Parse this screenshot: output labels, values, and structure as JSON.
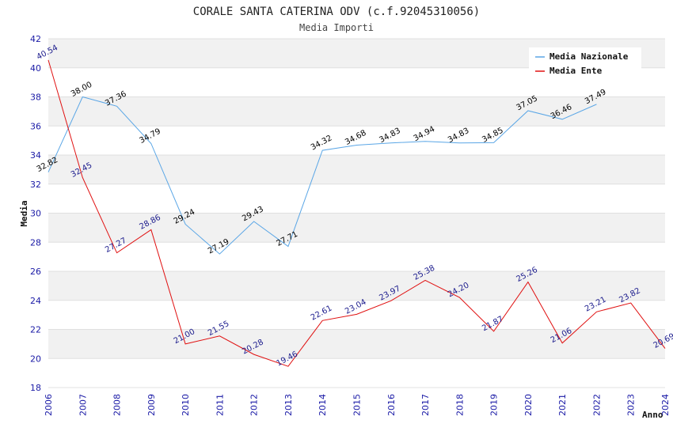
{
  "chart_data": {
    "type": "line",
    "title": "CORALE SANTA CATERINA ODV (c.f.92045310056)",
    "subtitle": "Media Importi",
    "xlabel": "Anno",
    "ylabel": "Media",
    "ylim": [
      18,
      42
    ],
    "yticks": [
      18,
      20,
      22,
      24,
      26,
      28,
      30,
      32,
      34,
      36,
      38,
      40,
      42
    ],
    "x": [
      2006,
      2007,
      2008,
      2009,
      2010,
      2011,
      2012,
      2013,
      2014,
      2015,
      2016,
      2017,
      2018,
      2019,
      2020,
      2021,
      2022,
      2023,
      2024
    ],
    "grid": true,
    "legend_position": "top-right",
    "series": [
      {
        "name": "Media Nazionale",
        "color": "#5aa6e6",
        "label_color": "#000000",
        "values": [
          32.82,
          38.0,
          37.36,
          34.79,
          29.24,
          27.19,
          29.43,
          27.71,
          34.32,
          34.68,
          34.83,
          34.94,
          34.83,
          34.85,
          37.05,
          36.46,
          37.49,
          null,
          null
        ],
        "labels": [
          "32.82",
          "38.00",
          "37.36",
          "34.79",
          "29.24",
          "27.19",
          "29.43",
          "27.71",
          "34.32",
          "34.68",
          "34.83",
          "34.94",
          "34.83",
          "34.85",
          "37.05",
          "36.46",
          "37.49",
          "",
          ""
        ]
      },
      {
        "name": "Media Ente",
        "color": "#e01010",
        "label_color": "#1a1a8c",
        "values": [
          40.54,
          32.45,
          27.27,
          28.86,
          21.0,
          21.55,
          20.28,
          19.46,
          22.61,
          23.04,
          23.97,
          25.38,
          24.2,
          21.87,
          25.26,
          21.06,
          23.21,
          23.82,
          20.69
        ],
        "labels": [
          "40.54",
          "32.45",
          "27.27",
          "28.86",
          "21.00",
          "21.55",
          "20.28",
          "19.46",
          "22.61",
          "23.04",
          "23.97",
          "25.38",
          "24.20",
          "21.87",
          "25.26",
          "21.06",
          "23.21",
          "23.82",
          "20.69"
        ]
      }
    ]
  }
}
